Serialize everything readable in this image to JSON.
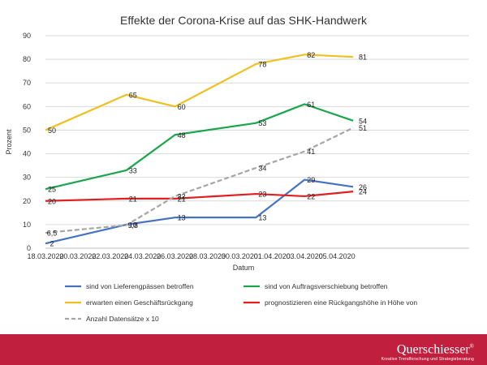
{
  "chart_data": {
    "type": "line",
    "title": "Effekte der Corona-Krise auf das SHK-Handwerk",
    "xlabel": "Datum",
    "ylabel": "Prozent",
    "ylim": [
      0,
      90
    ],
    "y_ticks": [
      "0",
      "10",
      "20",
      "30",
      "40",
      "50",
      "60",
      "70",
      "80",
      "90"
    ],
    "x_tick_labels": [
      "18.03.2020",
      "20.03.2020",
      "22.03.2020",
      "24.03.2020",
      "26.03.2020",
      "28.03.2020",
      "30.03.2020",
      "01.04.2020",
      "03.04.2020",
      "05.04.2020"
    ],
    "x_dates": [
      "18.03.2020",
      "23.03.2020",
      "26.03.2020",
      "31.03.2020",
      "03.04.2020",
      "06.04.2020"
    ],
    "grid": "horizontal",
    "legend_position": "bottom",
    "series": [
      {
        "name": "sind von Lieferengpässen betroffen",
        "color": "#4472c4",
        "dash": "solid",
        "values": [
          2,
          10,
          13,
          13,
          29,
          26
        ],
        "labels": [
          "2",
          "10",
          "13",
          "13",
          "29",
          "26"
        ]
      },
      {
        "name": "sind von Auftragsverschiebung betroffen",
        "color": "#1aa64b",
        "dash": "solid",
        "values": [
          25,
          33,
          48,
          53,
          61,
          54
        ],
        "labels": [
          "25",
          "33",
          "48",
          "53",
          "61",
          "54"
        ]
      },
      {
        "name": "erwarten einen Geschäftsrückgang",
        "color": "#f0c020",
        "dash": "solid",
        "values": [
          50,
          65,
          60,
          78,
          82,
          81
        ],
        "labels": [
          "50",
          "65",
          "60",
          "78",
          "82",
          "81"
        ]
      },
      {
        "name": "prognostizieren eine Rückgangshöhe in Höhe von",
        "color": "#e02020",
        "dash": "solid",
        "values": [
          20,
          21,
          21,
          23,
          22,
          24
        ],
        "labels": [
          "20",
          "21",
          "21",
          "23",
          "22",
          "24"
        ]
      },
      {
        "name": "Anzahl Datensätze x 10",
        "color": "#a6a6a6",
        "dash": "dashed",
        "values": [
          6.5,
          9.8,
          22,
          34,
          41,
          51
        ],
        "labels": [
          "6,5",
          "9,8",
          "22",
          "34",
          "41",
          "51"
        ]
      }
    ]
  },
  "footer": {
    "brand_name": "Querschiesser",
    "brand_mark": "®",
    "brand_tagline": "Kreative Trendforschung und Strategieberatung",
    "brand_color": "#c01f3d"
  }
}
